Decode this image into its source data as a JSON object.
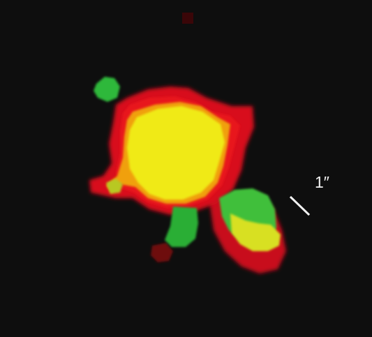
{
  "image": {
    "scale_bar": {
      "label": "1″"
    },
    "colors": {
      "background": "#0e0e0e",
      "red_channel": "#e0101a",
      "dark_red": "#7a0a10",
      "green_channel": "#2fb83a",
      "yellow_core": "#f0ea12",
      "orange_edge": "#f0a010",
      "scale_bar": "#f2f2f2"
    }
  }
}
